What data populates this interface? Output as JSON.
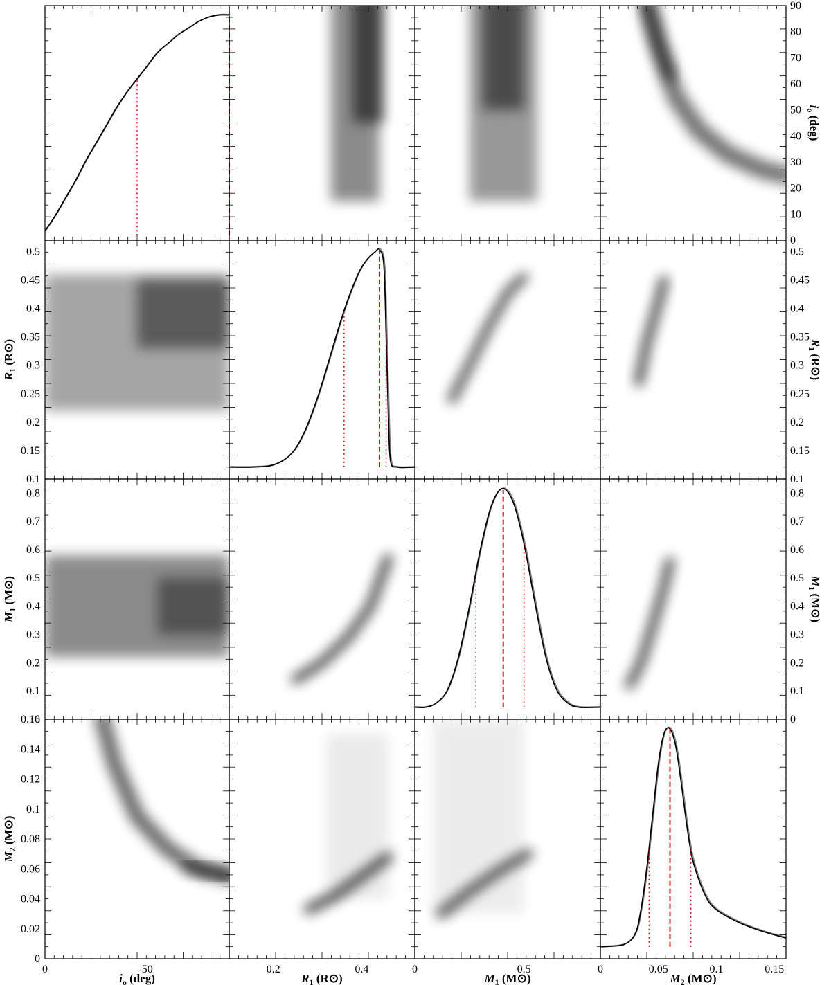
{
  "chart_data": {
    "type": "corner",
    "parameters": [
      {
        "key": "io",
        "label_main": "i",
        "label_sub": "o",
        "unit": "(deg)",
        "range": [
          0,
          90
        ],
        "bottom_ticks": [
          {
            "v": 0,
            "t": "0"
          },
          {
            "v": 50,
            "t": "50"
          }
        ],
        "right_ticks": [
          0,
          10,
          20,
          30,
          40,
          50,
          60,
          70,
          80,
          90
        ]
      },
      {
        "key": "R1",
        "label_main": "R",
        "label_sub": "1",
        "unit": "(R⊙)",
        "range": [
          0.1,
          0.52
        ],
        "bottom_ticks": [
          {
            "v": 0.2,
            "t": "0.2"
          },
          {
            "v": 0.4,
            "t": "0.4"
          }
        ],
        "side_ticks": [
          {
            "v": 0.1,
            "t": "0.1"
          },
          {
            "v": 0.15,
            "t": "0.15"
          },
          {
            "v": 0.2,
            "t": "0.2"
          },
          {
            "v": 0.25,
            "t": "0.25"
          },
          {
            "v": 0.3,
            "t": "0.3"
          },
          {
            "v": 0.35,
            "t": "0.35"
          },
          {
            "v": 0.4,
            "t": "0.4"
          },
          {
            "v": 0.45,
            "t": "0.45"
          },
          {
            "v": 0.5,
            "t": "0.5"
          }
        ]
      },
      {
        "key": "M1",
        "label_main": "M",
        "label_sub": "1",
        "unit": "(M⊙)",
        "range": [
          0,
          0.85
        ],
        "bottom_ticks": [
          {
            "v": 0,
            "t": "0"
          },
          {
            "v": 0.5,
            "t": "0.5"
          }
        ],
        "side_ticks": [
          {
            "v": 0,
            "t": "0"
          },
          {
            "v": 0.1,
            "t": "0.1"
          },
          {
            "v": 0.2,
            "t": "0.2"
          },
          {
            "v": 0.3,
            "t": "0.3"
          },
          {
            "v": 0.4,
            "t": "0.4"
          },
          {
            "v": 0.5,
            "t": "0.5"
          },
          {
            "v": 0.6,
            "t": "0.6"
          },
          {
            "v": 0.7,
            "t": "0.7"
          },
          {
            "v": 0.8,
            "t": "0.8"
          }
        ]
      },
      {
        "key": "M2",
        "label_main": "M",
        "label_sub": "2",
        "unit": "(M⊙)",
        "range": [
          0,
          0.16
        ],
        "bottom_ticks": [
          {
            "v": 0,
            "t": "0"
          },
          {
            "v": 0.05,
            "t": "0.05"
          },
          {
            "v": 0.1,
            "t": "0.1"
          },
          {
            "v": 0.15,
            "t": "0.15"
          }
        ],
        "side_ticks": [
          {
            "v": 0,
            "t": "0"
          },
          {
            "v": 0.02,
            "t": "0.02"
          },
          {
            "v": 0.04,
            "t": "0.04"
          },
          {
            "v": 0.06,
            "t": "0.06"
          },
          {
            "v": 0.08,
            "t": "0.08"
          },
          {
            "v": 0.1,
            "t": "0.1"
          },
          {
            "v": 0.12,
            "t": "0.12"
          },
          {
            "v": 0.14,
            "t": "0.14"
          },
          {
            "v": 0.16,
            "t": "0.16"
          }
        ]
      }
    ],
    "marginals": [
      {
        "param": "io",
        "median": 90,
        "lower": 45,
        "upper": null,
        "curve_x": [
          0,
          5,
          10,
          15,
          20,
          25,
          30,
          35,
          40,
          45,
          50,
          55,
          60,
          65,
          70,
          75,
          80,
          85,
          90
        ],
        "curve_y": [
          0.02,
          0.09,
          0.17,
          0.25,
          0.34,
          0.42,
          0.5,
          0.58,
          0.65,
          0.71,
          0.77,
          0.83,
          0.87,
          0.91,
          0.94,
          0.97,
          0.99,
          1.0,
          1.0
        ]
      },
      {
        "param": "R1",
        "median": 0.44,
        "lower": 0.36,
        "upper": 0.455,
        "curve_x": [
          0.1,
          0.15,
          0.2,
          0.24,
          0.27,
          0.3,
          0.33,
          0.36,
          0.39,
          0.41,
          0.43,
          0.44,
          0.45,
          0.455,
          0.46,
          0.465,
          0.48,
          0.52
        ],
        "curve_y": [
          0.0,
          0.0,
          0.01,
          0.06,
          0.16,
          0.32,
          0.52,
          0.72,
          0.88,
          0.95,
          0.99,
          1.0,
          0.93,
          0.62,
          0.25,
          0.03,
          0.0,
          0.0
        ]
      },
      {
        "param": "M1",
        "median": 0.405,
        "lower": 0.28,
        "upper": 0.5,
        "curve_x": [
          0,
          0.05,
          0.1,
          0.15,
          0.2,
          0.25,
          0.3,
          0.35,
          0.4,
          0.45,
          0.5,
          0.55,
          0.6,
          0.65,
          0.7,
          0.75,
          0.85
        ],
        "curve_y": [
          0.0,
          0.0,
          0.02,
          0.08,
          0.23,
          0.46,
          0.72,
          0.92,
          1.0,
          0.94,
          0.75,
          0.48,
          0.23,
          0.08,
          0.02,
          0.0,
          0.0
        ]
      },
      {
        "param": "M2",
        "median": 0.06,
        "lower": 0.042,
        "upper": 0.078,
        "curve_x": [
          0,
          0.02,
          0.03,
          0.035,
          0.04,
          0.045,
          0.05,
          0.055,
          0.06,
          0.065,
          0.07,
          0.075,
          0.08,
          0.09,
          0.1,
          0.12,
          0.14,
          0.16
        ],
        "curve_y": [
          0.0,
          0.01,
          0.06,
          0.17,
          0.36,
          0.6,
          0.84,
          0.98,
          1.0,
          0.92,
          0.74,
          0.54,
          0.39,
          0.24,
          0.17,
          0.11,
          0.07,
          0.04
        ]
      }
    ],
    "joint_densities": "grayscale 2D posterior density, black = highest density",
    "colors": {
      "median_line": "#e00000",
      "interval_line": "#e00000",
      "curve": "#000000",
      "density_max": "#000000"
    }
  }
}
